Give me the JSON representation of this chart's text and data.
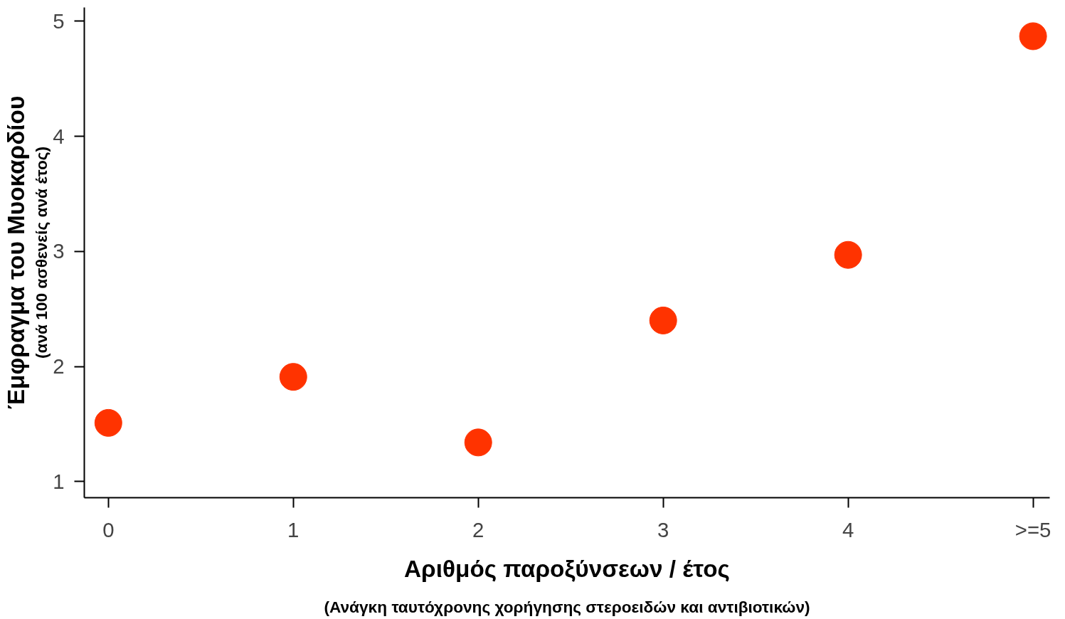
{
  "chart_data": {
    "type": "scatter",
    "ylabel": "Έμφραγμα του Μυοκαρδίου",
    "xlabel": "Αριθμός παροξύνσεων / έτος",
    "annotations": [
      "(ανά 100 ασθενείς ανά έτος)",
      "(Ανάγκη ταυτόχρονης χορήγησης στεροειδών και αντιβιοτικών)"
    ],
    "categories": [
      "0",
      "1",
      "2",
      "3",
      "4",
      ">=5"
    ],
    "series": [
      {
        "color": "#ff3300",
        "values": [
          1.51,
          1.91,
          1.34,
          2.4,
          2.97,
          4.87
        ]
      }
    ],
    "ylim": [
      0.86,
      5.12
    ],
    "yticks": [
      1,
      2,
      3,
      4,
      5
    ],
    "marker": "circle",
    "grid": false
  }
}
